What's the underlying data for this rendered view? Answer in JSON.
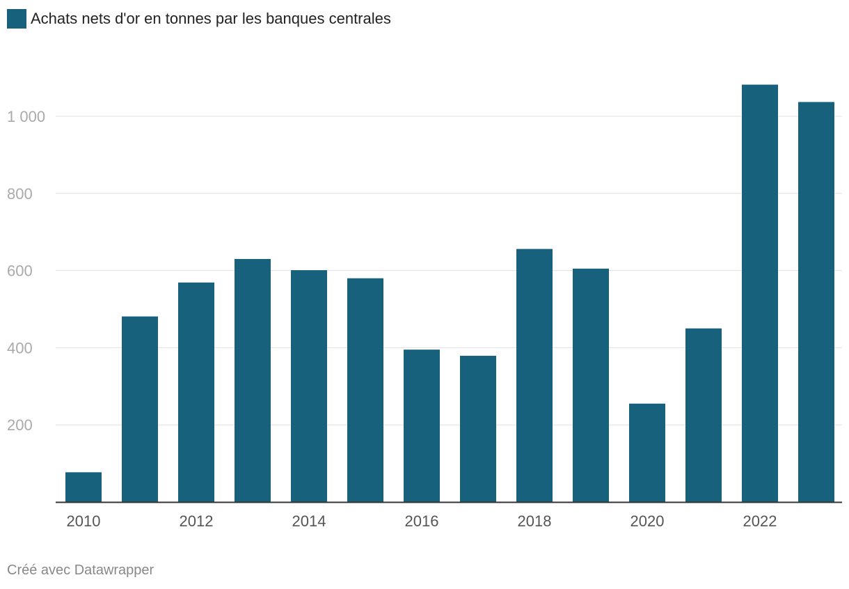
{
  "chart_data": {
    "type": "bar",
    "legend": [
      {
        "name": "Achats nets d'or en tonnes par les banques centrales",
        "color": "#17617c"
      }
    ],
    "categories": [
      "2010",
      "2011",
      "2012",
      "2013",
      "2014",
      "2015",
      "2016",
      "2017",
      "2018",
      "2019",
      "2020",
      "2021",
      "2022",
      "2023"
    ],
    "values": [
      77,
      481,
      569,
      630,
      601,
      580,
      395,
      379,
      656,
      605,
      255,
      450,
      1082,
      1037
    ],
    "x_tick_labels": [
      "2010",
      "2012",
      "2014",
      "2016",
      "2018",
      "2020",
      "2022"
    ],
    "y_ticks": [
      200,
      400,
      600,
      800,
      1000
    ],
    "y_tick_labels": [
      "200",
      "400",
      "600",
      "800",
      "1 000"
    ],
    "ylim": [
      0,
      1100
    ],
    "grid": true,
    "legend_placement": "top-left",
    "colors": {
      "bar": "#17617c",
      "grid": "#e0e0e0",
      "axis": "#333333",
      "tick_text": "#aaaaaa",
      "x_tick_text": "#555555"
    }
  },
  "footer": "Créé avec Datawrapper"
}
